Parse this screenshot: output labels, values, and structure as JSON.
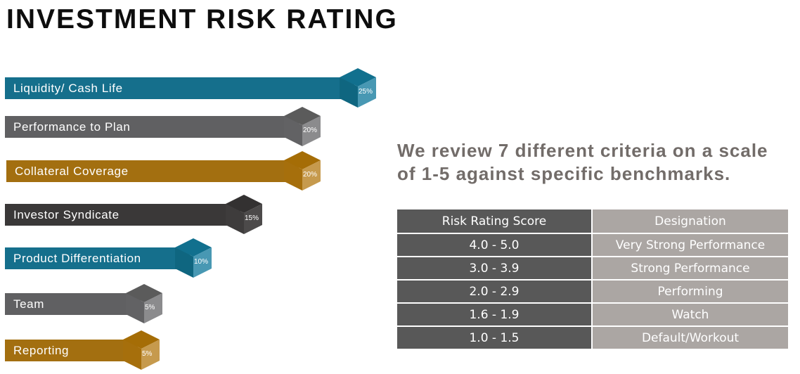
{
  "title": "INVESTMENT RISK RATING",
  "colors": {
    "teal": "#156f8c",
    "gray": "#606062",
    "gold": "#a36f10",
    "dark": "#3a3838",
    "summary_text": "#726c69",
    "table_score_bg": "#585858",
    "table_designation_bg": "#aba6a3"
  },
  "criteria": [
    {
      "label": "Liquidity/ Cash Life",
      "weight": "25%",
      "color": "teal"
    },
    {
      "label": "Performance to Plan",
      "weight": "20%",
      "color": "gray"
    },
    {
      "label": "Collateral Coverage",
      "weight": "20%",
      "color": "gold"
    },
    {
      "label": "Investor Syndicate",
      "weight": "15%",
      "color": "dark"
    },
    {
      "label": "Product Differentiation",
      "weight": "10%",
      "color": "teal"
    },
    {
      "label": "Team",
      "weight": "5%",
      "color": "gray"
    },
    {
      "label": "Reporting",
      "weight": "5%",
      "color": "gold"
    }
  ],
  "summary": {
    "line1": "We review 7 different criteria on a scale",
    "line2": "of 1-5 against specific benchmarks."
  },
  "table": {
    "headers": {
      "score": "Risk Rating Score",
      "designation": "Designation"
    },
    "rows": [
      {
        "score": "4.0 - 5.0",
        "designation": "Very Strong Performance"
      },
      {
        "score": "3.0 - 3.9",
        "designation": "Strong Performance"
      },
      {
        "score": "2.0 - 2.9",
        "designation": "Performing"
      },
      {
        "score": "1.6 - 1.9",
        "designation": "Watch"
      },
      {
        "score": "1.0 - 1.5",
        "designation": "Default/Workout"
      }
    ]
  }
}
